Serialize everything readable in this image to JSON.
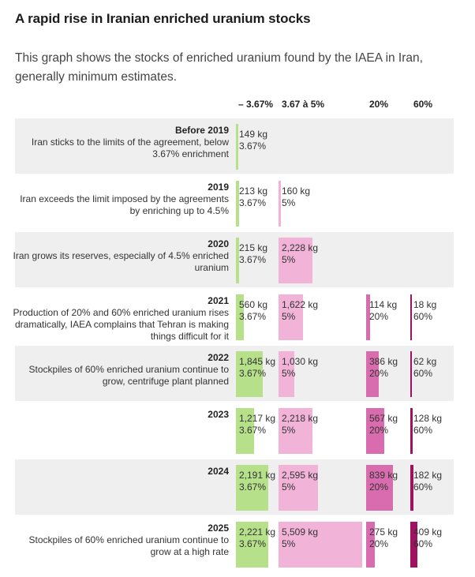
{
  "header": {
    "title": "A rapid rise in Iranian enriched uranium stocks",
    "subtitle": "This graph shows the stocks of enriched uranium found by the IAEA in Iran, generally minimum estimates."
  },
  "colors": {
    "c367": "#b6e08a",
    "c5": "#f2b3d9",
    "c20": "#d96cae",
    "c60": "#a0115f",
    "shade": "#efefef"
  },
  "chart_data": {
    "type": "table",
    "columns": [
      "– 3.67%",
      "3.67 à 5%",
      "20%",
      "60%"
    ],
    "column_keys": [
      "c367",
      "c5",
      "c20",
      "c60"
    ],
    "column_pct": [
      "3.67%",
      "5%",
      "20%",
      "60%"
    ],
    "unit": "kg",
    "rows": [
      {
        "year": "Before 2019",
        "desc": "Iran sticks to the limits of the agreement, below 3.67% enrichment",
        "values": [
          149,
          null,
          null,
          null
        ],
        "labels": [
          "149 kg",
          "",
          "",
          ""
        ]
      },
      {
        "year": "2019",
        "desc": "Iran exceeds the limit imposed by the agreements by enriching up to 4.5%",
        "values": [
          213,
          160,
          null,
          null
        ],
        "labels": [
          "213 kg",
          "160 kg",
          "",
          ""
        ]
      },
      {
        "year": "2020",
        "desc": "Iran grows its reserves, especially of 4.5% enriched uranium",
        "values": [
          215,
          2228,
          null,
          null
        ],
        "labels": [
          "215 kg",
          "2,228 kg",
          "",
          ""
        ]
      },
      {
        "year": "2021",
        "desc": "Production of 20% and 60% enriched uranium rises dramatically, IAEA complains that Tehran is making things difficult for it",
        "values": [
          560,
          1622,
          114,
          18
        ],
        "labels": [
          "560 kg",
          "1,622 kg",
          "114 kg",
          "18 kg"
        ]
      },
      {
        "year": "2022",
        "desc": "Stockpiles of 60% enriched uranium continue to grow, centrifuge plant planned",
        "values": [
          1845,
          1030,
          386,
          62
        ],
        "labels": [
          "1,845 kg",
          "1,030 kg",
          "386 kg",
          "62 kg"
        ]
      },
      {
        "year": "2023",
        "desc": "",
        "values": [
          1217,
          2218,
          567,
          128
        ],
        "labels": [
          "1,217 kg",
          "2,218 kg",
          "567 kg",
          "128 kg"
        ]
      },
      {
        "year": "2024",
        "desc": "",
        "values": [
          2191,
          2595,
          839,
          182
        ],
        "labels": [
          "2,191 kg",
          "2,595 kg",
          "839 kg",
          "182 kg"
        ]
      },
      {
        "year": "2025",
        "desc": "Stockpiles of 60% enriched uranium continue to grow at a high rate",
        "values": [
          2221,
          5509,
          275,
          409
        ],
        "labels": [
          "2,221 kg",
          "5,509 kg",
          "275 kg",
          "409 kg"
        ]
      }
    ]
  }
}
